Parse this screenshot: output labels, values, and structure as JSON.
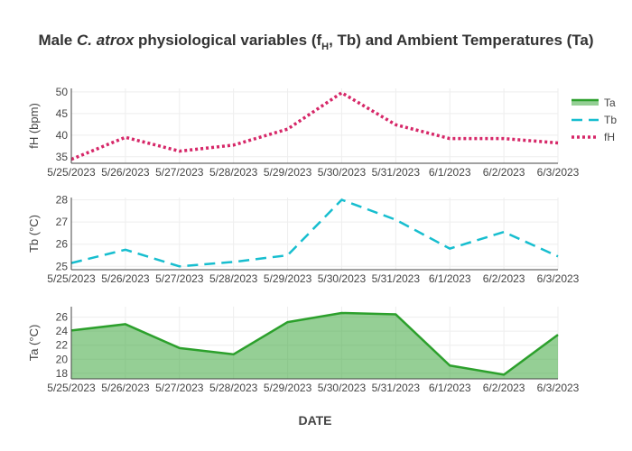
{
  "title": {
    "pre": "Male ",
    "species": "C. atrox",
    "mid": " physiological variables (f",
    "sub": "H",
    "post": ", Tb) and Ambient Temperatures (Ta)"
  },
  "colors": {
    "ta": "#2ca02c",
    "ta_fill": "rgba(44,160,44,0.5)",
    "tb": "#17becf",
    "fh": "#d62768"
  },
  "chart_data": [
    {
      "type": "line",
      "name": "fH",
      "ylabel": "fH (bpm)",
      "categories": [
        "5/25/2023",
        "5/26/2023",
        "5/27/2023",
        "5/28/2023",
        "5/29/2023",
        "5/30/2023",
        "5/31/2023",
        "6/1/2023",
        "6/2/2023",
        "6/3/2023"
      ],
      "values": [
        34.4,
        39.5,
        36.3,
        37.7,
        41.4,
        49.8,
        42.4,
        39.2,
        39.2,
        38.2
      ],
      "ylim": [
        33.5,
        50.8
      ],
      "yticks": [
        35,
        40,
        45,
        50
      ],
      "dash": "dot",
      "color_key": "fh"
    },
    {
      "type": "line",
      "name": "Tb",
      "ylabel": "Tb (°C)",
      "categories": [
        "5/25/2023",
        "5/26/2023",
        "5/27/2023",
        "5/28/2023",
        "5/29/2023",
        "5/30/2023",
        "5/31/2023",
        "6/1/2023",
        "6/2/2023",
        "6/3/2023"
      ],
      "values": [
        25.15,
        25.75,
        25.0,
        25.2,
        25.5,
        28.0,
        27.1,
        25.8,
        26.55,
        25.45
      ],
      "ylim": [
        24.85,
        28.1
      ],
      "yticks": [
        25,
        26,
        27,
        28
      ],
      "dash": "dash",
      "color_key": "tb"
    },
    {
      "type": "area",
      "name": "Ta",
      "ylabel": "Ta (°C)",
      "categories": [
        "5/25/2023",
        "5/26/2023",
        "5/27/2023",
        "5/28/2023",
        "5/29/2023",
        "5/30/2023",
        "5/31/2023",
        "6/1/2023",
        "6/2/2023",
        "6/3/2023"
      ],
      "values": [
        24.1,
        25.0,
        21.6,
        20.7,
        25.3,
        26.6,
        26.4,
        19.1,
        17.8,
        23.5
      ],
      "ylim": [
        17.2,
        27.5
      ],
      "yticks": [
        18,
        20,
        22,
        24,
        26
      ],
      "dash": "solid",
      "color_key": "ta"
    }
  ],
  "xaxis": {
    "title": "DATE"
  },
  "legend": {
    "position": "top-right",
    "items": [
      {
        "label": "Ta",
        "color_key": "ta",
        "style": "area"
      },
      {
        "label": "Tb",
        "color_key": "tb",
        "style": "dash"
      },
      {
        "label": "fH",
        "color_key": "fh",
        "style": "dot"
      }
    ]
  }
}
